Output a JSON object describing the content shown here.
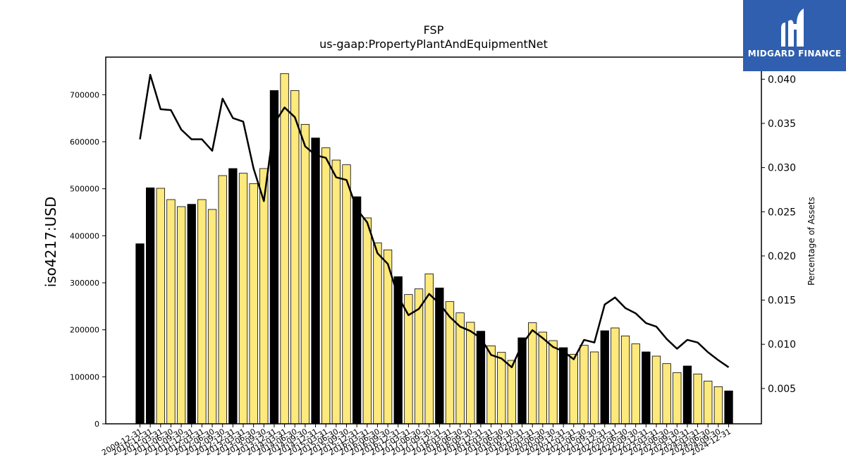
{
  "chart_data": {
    "type": "bar+line",
    "title": "FSP",
    "subtitle": "us-gaap:PropertyPlantAndEquipmentNet",
    "ylabel": "iso4217:USD",
    "y2label": "Percentage of Assets",
    "ylim": [
      0,
      780000
    ],
    "y2lim": [
      0.001,
      0.0425
    ],
    "yticks": [
      "0",
      "100000",
      "200000",
      "300000",
      "400000",
      "500000",
      "600000",
      "700000"
    ],
    "y2ticks": [
      "0.005",
      "0.010",
      "0.015",
      "0.020",
      "0.025",
      "0.030",
      "0.035",
      "0.040"
    ],
    "categories": [
      "2009-12-31",
      "2010-12-31",
      "2011-03-31",
      "2011-06-30",
      "2011-09-30",
      "2011-12-31",
      "2012-03-31",
      "2012-06-30",
      "2012-09-30",
      "2012-12-31",
      "2013-03-31",
      "2013-06-30",
      "2013-09-30",
      "2013-12-31",
      "2014-03-31",
      "2014-06-30",
      "2014-09-30",
      "2014-12-31",
      "2015-03-31",
      "2015-06-30",
      "2015-09-30",
      "2015-12-31",
      "2016-03-31",
      "2016-06-30",
      "2016-09-30",
      "2016-12-31",
      "2017-03-31",
      "2017-06-30",
      "2017-09-30",
      "2017-12-31",
      "2018-03-31",
      "2018-06-30",
      "2018-09-30",
      "2018-12-31",
      "2019-03-31",
      "2019-06-30",
      "2019-09-30",
      "2019-12-31",
      "2020-03-31",
      "2020-06-30",
      "2020-09-30",
      "2020-12-31",
      "2021-03-31",
      "2021-06-30",
      "2021-09-30",
      "2021-12-31",
      "2022-03-31",
      "2022-06-30",
      "2022-09-30",
      "2022-12-31",
      "2023-03-31",
      "2023-06-30",
      "2023-09-30",
      "2023-12-31",
      "2024-03-31",
      "2024-06-30",
      "2024-09-30",
      "2024-12-31"
    ],
    "values": [
      383000,
      502000,
      501000,
      477000,
      462000,
      467000,
      477000,
      456000,
      528000,
      543000,
      533000,
      511000,
      543000,
      709000,
      745000,
      709000,
      637000,
      608000,
      587000,
      561000,
      551000,
      483000,
      438000,
      385000,
      370000,
      313000,
      275000,
      287000,
      319000,
      289000,
      260000,
      236000,
      216000,
      197000,
      166000,
      152000,
      135000,
      183000,
      215000,
      195000,
      177000,
      162000,
      148000,
      167000,
      153000,
      198000,
      204000,
      187000,
      170000,
      153000,
      144000,
      128000,
      109000,
      123000,
      106000,
      91000,
      79000,
      70000
    ],
    "annual_flags": [
      1,
      1,
      0,
      0,
      0,
      1,
      0,
      0,
      0,
      1,
      0,
      0,
      0,
      1,
      0,
      0,
      0,
      1,
      0,
      0,
      0,
      1,
      0,
      0,
      0,
      1,
      0,
      0,
      0,
      1,
      0,
      0,
      0,
      1,
      0,
      0,
      0,
      1,
      0,
      0,
      0,
      1,
      0,
      0,
      0,
      1,
      0,
      0,
      0,
      1,
      0,
      0,
      0,
      1,
      0,
      0,
      0,
      1
    ],
    "pct_assets": [
      0.0332,
      0.0405,
      0.0366,
      0.0365,
      0.0343,
      0.0332,
      0.0332,
      0.0319,
      0.0378,
      0.0356,
      0.0352,
      0.0299,
      0.0262,
      0.035,
      0.0368,
      0.0357,
      0.0324,
      0.0314,
      0.0311,
      0.0289,
      0.0286,
      0.0253,
      0.0238,
      0.0203,
      0.0191,
      0.0154,
      0.0133,
      0.014,
      0.0157,
      0.0146,
      0.0131,
      0.012,
      0.0115,
      0.0107,
      0.0088,
      0.0084,
      0.0074,
      0.01,
      0.0116,
      0.0107,
      0.0097,
      0.0092,
      0.0083,
      0.0105,
      0.0102,
      0.0145,
      0.0153,
      0.0141,
      0.0135,
      0.0124,
      0.012,
      0.0106,
      0.0095,
      0.0105,
      0.0102,
      0.0091,
      0.0082,
      0.0074
    ],
    "colors": {
      "annual_bar": "#000000",
      "quarterly_bar": "#fde97c",
      "line": "#000000"
    },
    "grid": false,
    "legend": "none"
  },
  "logo": {
    "text": "MIDGARD FINANCE",
    "icon": "midgard-logo-icon"
  }
}
